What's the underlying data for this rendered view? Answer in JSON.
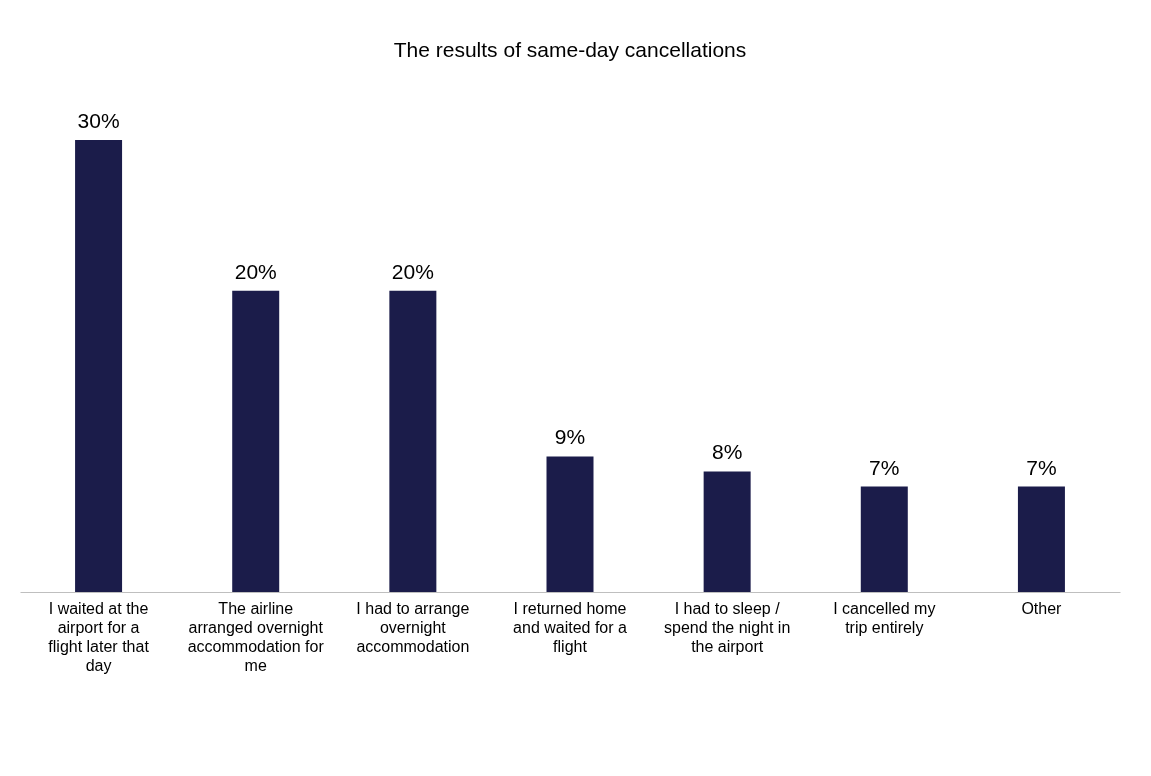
{
  "chart_data": {
    "type": "bar",
    "title": "The results of same-day cancellations",
    "categories": [
      "I waited at the airport for a flight later that day",
      "The airline arranged overnight accommodation for me",
      "I had to arrange overnight accommodation",
      "I returned home and waited for a flight",
      "I had to sleep / spend the night in the airport",
      "I cancelled my trip entirely",
      "Other"
    ],
    "values": [
      30,
      20,
      20,
      9,
      8,
      7,
      7
    ],
    "value_labels": [
      "30%",
      "20%",
      "20%",
      "9%",
      "8%",
      "7%",
      "7%"
    ],
    "color": "#1b1c4a",
    "grid": false
  }
}
